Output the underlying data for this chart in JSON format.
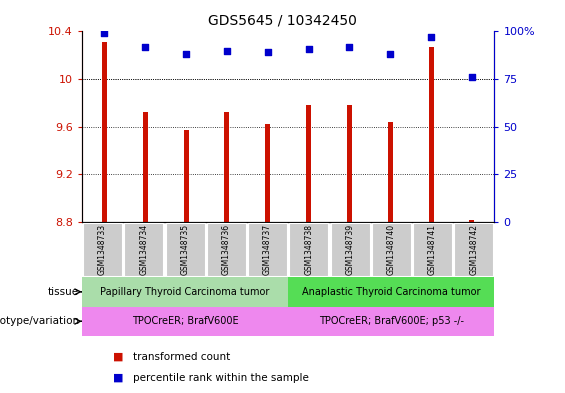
{
  "title": "GDS5645 / 10342450",
  "samples": [
    "GSM1348733",
    "GSM1348734",
    "GSM1348735",
    "GSM1348736",
    "GSM1348737",
    "GSM1348738",
    "GSM1348739",
    "GSM1348740",
    "GSM1348741",
    "GSM1348742"
  ],
  "transformed_count": [
    10.31,
    9.72,
    9.57,
    9.72,
    9.62,
    9.78,
    9.78,
    9.64,
    10.27,
    8.82
  ],
  "percentile_rank": [
    99,
    92,
    88,
    90,
    89,
    91,
    92,
    88,
    97,
    76
  ],
  "ylim_left": [
    8.8,
    10.4
  ],
  "ylim_right": [
    0,
    100
  ],
  "yticks_left": [
    8.8,
    9.2,
    9.6,
    10.0,
    10.4
  ],
  "ytick_labels_left": [
    "8.8",
    "9.2",
    "9.6",
    "10",
    "10.4"
  ],
  "yticks_right": [
    0,
    25,
    50,
    75,
    100
  ],
  "ytick_labels_right": [
    "0",
    "25",
    "50",
    "75",
    "100%"
  ],
  "bar_color": "#cc1100",
  "dot_color": "#0000cc",
  "tissue_group1": "Papillary Thyroid Carcinoma tumor",
  "tissue_group2": "Anaplastic Thyroid Carcinoma tumor",
  "tissue_group1_color": "#aaddaa",
  "tissue_group2_color": "#55dd55",
  "genotype_group1": "TPOCreER; BrafV600E",
  "genotype_group2": "TPOCreER; BrafV600E; p53 -/-",
  "genotype_color": "#ee88ee",
  "label_tissue": "tissue",
  "label_genotype": "genotype/variation",
  "legend_bar": "transformed count",
  "legend_dot": "percentile rank within the sample",
  "group1_count": 5,
  "group2_count": 5,
  "bg_color": "#ffffff"
}
